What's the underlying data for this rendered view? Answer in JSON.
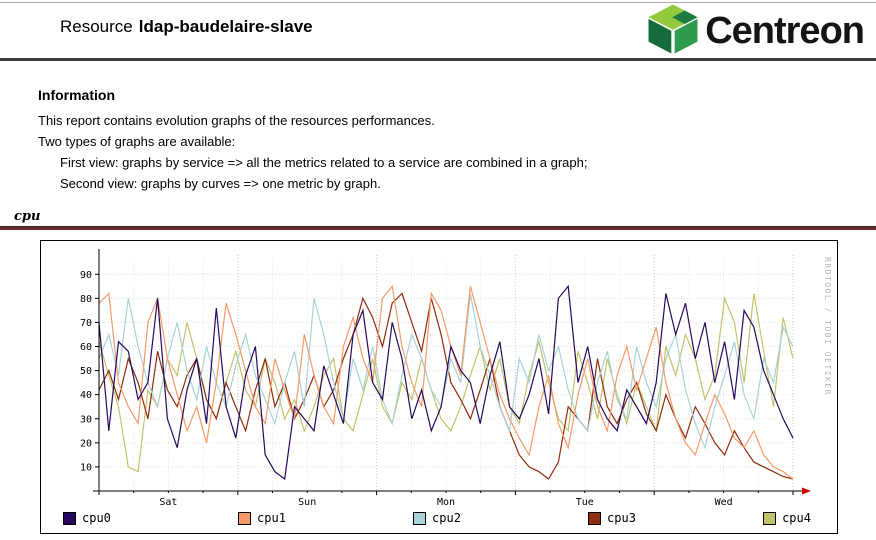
{
  "header": {
    "title_prefix": "Resource",
    "title_resource": "ldap-baudelaire-slave",
    "brand": "Centreon"
  },
  "info": {
    "heading": "Information",
    "line1": "This report contains evolution graphs of the resources performances.",
    "line2": "Two types of graphs are available:",
    "line3": "First view: graphs by service => all the metrics related to a service are combined in a graph;",
    "line4": "Second view: graphs by curves => one metric by graph."
  },
  "section": {
    "label": "cpu"
  },
  "watermark": "RRDTOOL / TOBI OETIKER",
  "chart_data": {
    "type": "line",
    "title": "cpu",
    "xlabel": "",
    "ylabel": "",
    "ylim": [
      0,
      98
    ],
    "yticks": [
      10,
      20,
      30,
      40,
      50,
      60,
      70,
      80,
      90
    ],
    "x_day_labels": [
      "Sat",
      "Sun",
      "Mon",
      "Tue",
      "Wed"
    ],
    "grid": true,
    "legend_position": "bottom",
    "series": [
      {
        "name": "cpu0",
        "color": "#26095e",
        "values": [
          70,
          25,
          62,
          58,
          38,
          45,
          80,
          30,
          18,
          42,
          55,
          28,
          76,
          35,
          22,
          48,
          60,
          15,
          8,
          5,
          35,
          30,
          25,
          52,
          40,
          28,
          65,
          75,
          45,
          38,
          70,
          55,
          30,
          42,
          25,
          35,
          60,
          50,
          45,
          28,
          48,
          62,
          35,
          30,
          40,
          55,
          32,
          80,
          85,
          45,
          60,
          38,
          30,
          25,
          42,
          35,
          28,
          45,
          82,
          65,
          78,
          55,
          70,
          45,
          62,
          38,
          75,
          68,
          50,
          40,
          30,
          22
        ]
      },
      {
        "name": "cpu1",
        "color": "#f89a67",
        "values": [
          78,
          82,
          45,
          35,
          28,
          70,
          80,
          55,
          40,
          25,
          35,
          20,
          45,
          78,
          65,
          50,
          35,
          28,
          55,
          42,
          30,
          65,
          48,
          35,
          28,
          60,
          72,
          55,
          45,
          80,
          85,
          60,
          45,
          35,
          82,
          75,
          60,
          48,
          85,
          70,
          55,
          40,
          30,
          22,
          15,
          35,
          48,
          28,
          18,
          40,
          55,
          35,
          25,
          48,
          60,
          42,
          55,
          68,
          45,
          30,
          20,
          15,
          28,
          40,
          32,
          22,
          18,
          25,
          15,
          10,
          8,
          5
        ]
      },
      {
        "name": "cpu2",
        "color": "#a9d3d6",
        "values": [
          55,
          65,
          48,
          80,
          60,
          45,
          35,
          55,
          70,
          50,
          38,
          60,
          45,
          35,
          52,
          65,
          48,
          38,
          28,
          45,
          58,
          35,
          80,
          65,
          45,
          30,
          55,
          42,
          60,
          38,
          28,
          48,
          65,
          55,
          42,
          35,
          55,
          45,
          82,
          60,
          48,
          35,
          25,
          55,
          45,
          65,
          50,
          60,
          42,
          30,
          25,
          45,
          58,
          38,
          30,
          60,
          45,
          35,
          55,
          65,
          42,
          28,
          18,
          35,
          48,
          62,
          40,
          30,
          55,
          45,
          68,
          60
        ]
      },
      {
        "name": "cpu3",
        "color": "#8f2d0e",
        "values": [
          42,
          50,
          38,
          55,
          45,
          30,
          58,
          42,
          35,
          48,
          55,
          38,
          30,
          45,
          35,
          25,
          42,
          55,
          35,
          45,
          30,
          38,
          48,
          35,
          42,
          55,
          65,
          80,
          72,
          60,
          78,
          82,
          70,
          58,
          80,
          65,
          45,
          38,
          30,
          42,
          55,
          35,
          25,
          15,
          10,
          8,
          5,
          12,
          35,
          30,
          25,
          55,
          35,
          28,
          38,
          45,
          32,
          25,
          40,
          30,
          22,
          35,
          28,
          20,
          15,
          25,
          18,
          12,
          10,
          8,
          6,
          5
        ]
      },
      {
        "name": "cpu4",
        "color": "#c3c36a",
        "values": [
          62,
          48,
          35,
          10,
          8,
          42,
          35,
          55,
          48,
          70,
          55,
          38,
          30,
          45,
          58,
          42,
          35,
          55,
          45,
          30,
          38,
          25,
          35,
          48,
          55,
          30,
          25,
          40,
          55,
          35,
          28,
          45,
          38,
          55,
          42,
          30,
          25,
          35,
          48,
          60,
          42,
          55,
          35,
          28,
          48,
          62,
          45,
          30,
          25,
          58,
          45,
          30,
          55,
          40,
          28,
          45,
          35,
          25,
          60,
          48,
          65,
          55,
          38,
          48,
          80,
          70,
          45,
          82,
          58,
          35,
          72,
          55
        ]
      }
    ]
  }
}
